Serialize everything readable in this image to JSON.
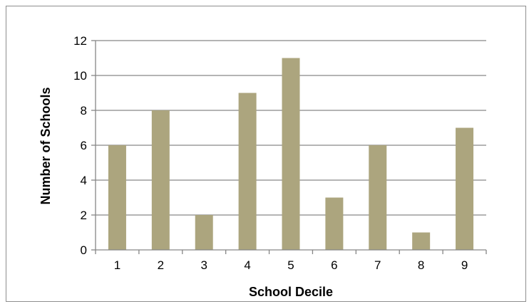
{
  "chart_data": {
    "type": "bar",
    "categories": [
      "1",
      "2",
      "3",
      "4",
      "5",
      "6",
      "7",
      "8",
      "9"
    ],
    "values": [
      6,
      8,
      2,
      9,
      11,
      3,
      6,
      1,
      7
    ],
    "title": "",
    "xlabel": "School Decile",
    "ylabel": "Number of Schools",
    "ylim": [
      0,
      12
    ],
    "yticks": [
      0,
      2,
      4,
      6,
      8,
      10,
      12
    ],
    "grid": true,
    "legend": "none",
    "colors": {
      "bar": "#aca57e",
      "grid": "#868686",
      "axis": "#868686",
      "frame": "#8e8e8e"
    }
  }
}
